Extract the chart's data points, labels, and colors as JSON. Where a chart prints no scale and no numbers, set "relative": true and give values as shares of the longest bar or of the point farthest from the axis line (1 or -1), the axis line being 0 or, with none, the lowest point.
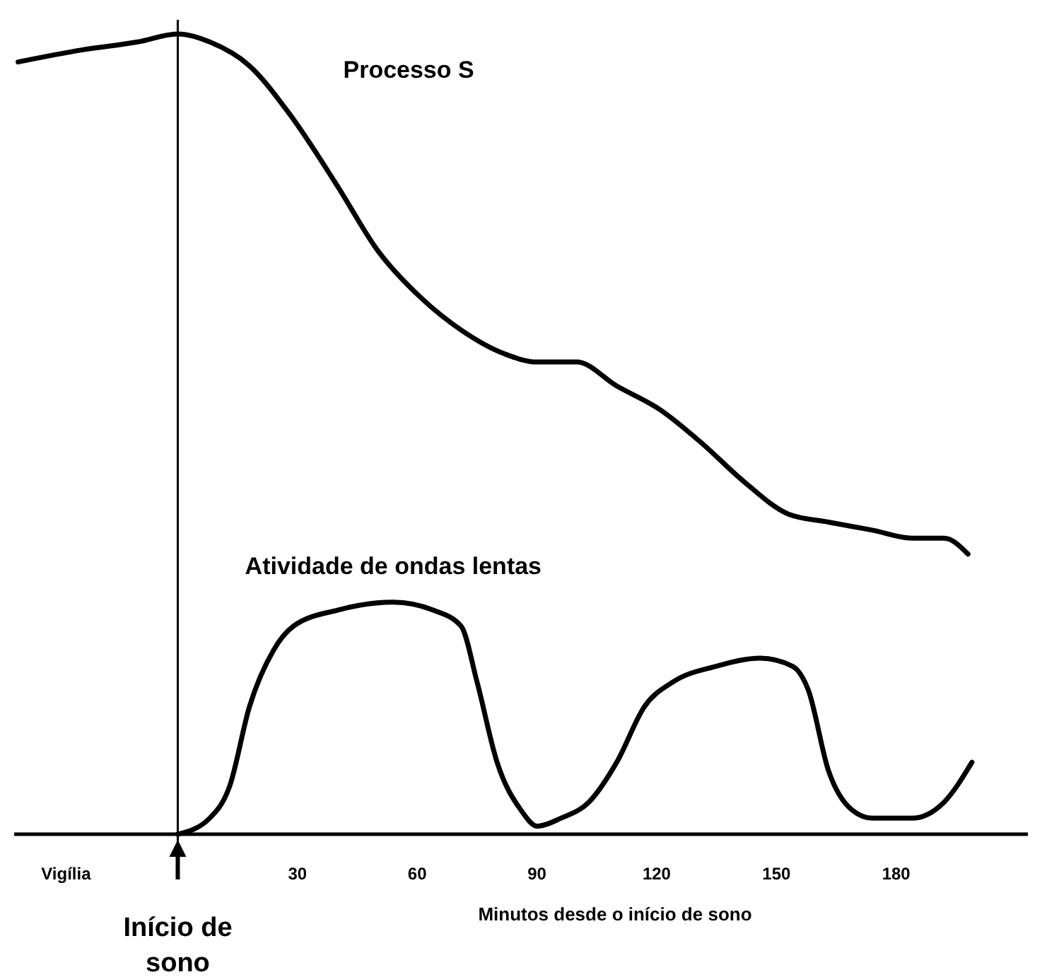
{
  "chart_data": {
    "type": "line",
    "relative": true,
    "xlabel": "Minutos desde o início de sono",
    "xlim": [
      -41,
      213
    ],
    "xticks": [
      {
        "value": -28,
        "label": "Vigília"
      },
      30,
      60,
      90,
      120,
      150,
      180
    ],
    "marker": "none",
    "line_style": "solid",
    "series": [
      {
        "name": "Processo S",
        "color": "#000000",
        "x": [
          -40,
          -24,
          -10,
          0,
          8,
          18,
          28,
          40,
          50,
          61,
          71,
          82,
          90,
          100,
          110,
          121,
          131,
          142,
          153,
          163,
          174,
          184,
          192,
          198
        ],
        "values": [
          0.965,
          0.98,
          0.99,
          1.0,
          0.99,
          0.96,
          0.9,
          0.81,
          0.73,
          0.67,
          0.63,
          0.6,
          0.59,
          0.59,
          0.56,
          0.53,
          0.49,
          0.44,
          0.4,
          0.39,
          0.38,
          0.37,
          0.37,
          0.35
        ]
      },
      {
        "name": "Atividade de ondas lentas",
        "color": "#000000",
        "x": [
          0,
          8,
          13,
          18,
          24,
          29,
          40,
          54,
          64,
          71,
          75,
          80,
          86,
          90,
          96,
          103,
          110,
          117,
          124,
          135,
          146,
          154,
          158,
          163,
          169,
          174,
          184,
          192,
          199
        ],
        "values": [
          0,
          0.02,
          0.06,
          0.16,
          0.23,
          0.26,
          0.28,
          0.29,
          0.28,
          0.26,
          0.19,
          0.09,
          0.03,
          0.01,
          0.02,
          0.04,
          0.09,
          0.16,
          0.19,
          0.21,
          0.22,
          0.21,
          0.18,
          0.08,
          0.03,
          0.02,
          0.02,
          0.04,
          0.09
        ]
      }
    ],
    "ref_lines": [
      {
        "axis": "x",
        "value": 0,
        "label": "Início de sono",
        "color": "#000000"
      }
    ]
  }
}
